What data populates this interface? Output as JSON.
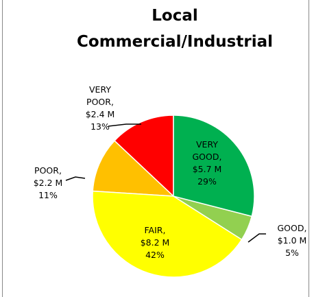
{
  "chart_data": {
    "type": "pie",
    "title": "Local Commercial/Industrial",
    "categories": [
      "VERY GOOD",
      "GOOD",
      "FAIR",
      "POOR",
      "VERY POOR"
    ],
    "values": [
      29,
      5,
      42,
      11,
      13
    ],
    "value_labels": [
      "29%",
      "5%",
      "42%",
      "11%",
      "13%"
    ],
    "amounts": [
      5.7,
      1.0,
      8.2,
      2.2,
      2.4
    ],
    "amount_labels": [
      "$5.7 M",
      "$1.0 M",
      "$8.2 M",
      "$2.2 M",
      "$2.4 M"
    ],
    "colors": [
      "#00b050",
      "#92d050",
      "#ffff00",
      "#ffc000",
      "#ff0000"
    ]
  }
}
